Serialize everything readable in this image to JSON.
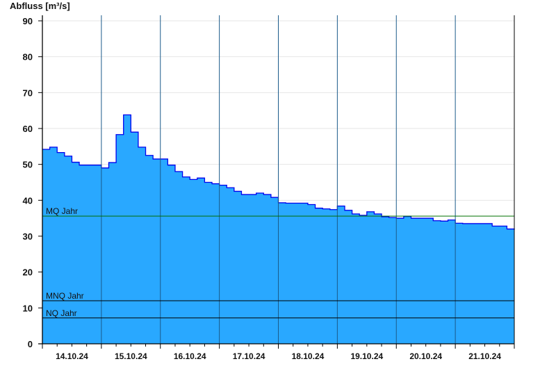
{
  "chart_data": {
    "type": "area",
    "title": "",
    "ylabel": "Abfluss [m³/s]",
    "xlabel": "",
    "ylim": [
      0,
      90
    ],
    "yticks": [
      0,
      10,
      20,
      30,
      40,
      50,
      60,
      70,
      80,
      90
    ],
    "xlim": [
      "14.10.24 00:00",
      "22.10.24 00:00"
    ],
    "xtick_labels": [
      "14.10.24",
      "15.10.24",
      "16.10.24",
      "17.10.24",
      "18.10.24",
      "19.10.24",
      "20.10.24",
      "21.10.24"
    ],
    "grid": "horizontal",
    "interval_hours": 3,
    "colors": {
      "fill": "#29a8ff",
      "line": "#0000ee",
      "mq_line": "#007000",
      "ref_line": "#000000",
      "grid": "#e6e6e6"
    },
    "series": [
      {
        "start": "14.10.24 00:00",
        "values": [
          54.2,
          54.8,
          53.3,
          52.3,
          50.6,
          49.8,
          49.8,
          49.8,
          49.0,
          50.5,
          58.3,
          63.8,
          59.0,
          54.8,
          52.5,
          51.5,
          51.5,
          49.8,
          48.0,
          46.5,
          45.8,
          46.2,
          45.0,
          44.6,
          44.2,
          43.5,
          42.5,
          41.6,
          41.6,
          42.0,
          41.6,
          40.8,
          39.3,
          39.2,
          39.2,
          39.2,
          38.8,
          37.8,
          37.6,
          37.4,
          38.4,
          37.2,
          36.2,
          35.8,
          36.8,
          36.2,
          35.4,
          35.2,
          35.0,
          35.5,
          35.0,
          35.0,
          35.0,
          34.3,
          34.2,
          34.5,
          33.6,
          33.5,
          33.5,
          33.5,
          33.5,
          32.8,
          32.8,
          32.0,
          31.8
        ]
      }
    ],
    "reference_lines": [
      {
        "label": "MQ Jahr",
        "value": 35.6
      },
      {
        "label": "MNQ Jahr",
        "value": 12.0
      },
      {
        "label": "NQ Jahr",
        "value": 7.2
      }
    ]
  }
}
